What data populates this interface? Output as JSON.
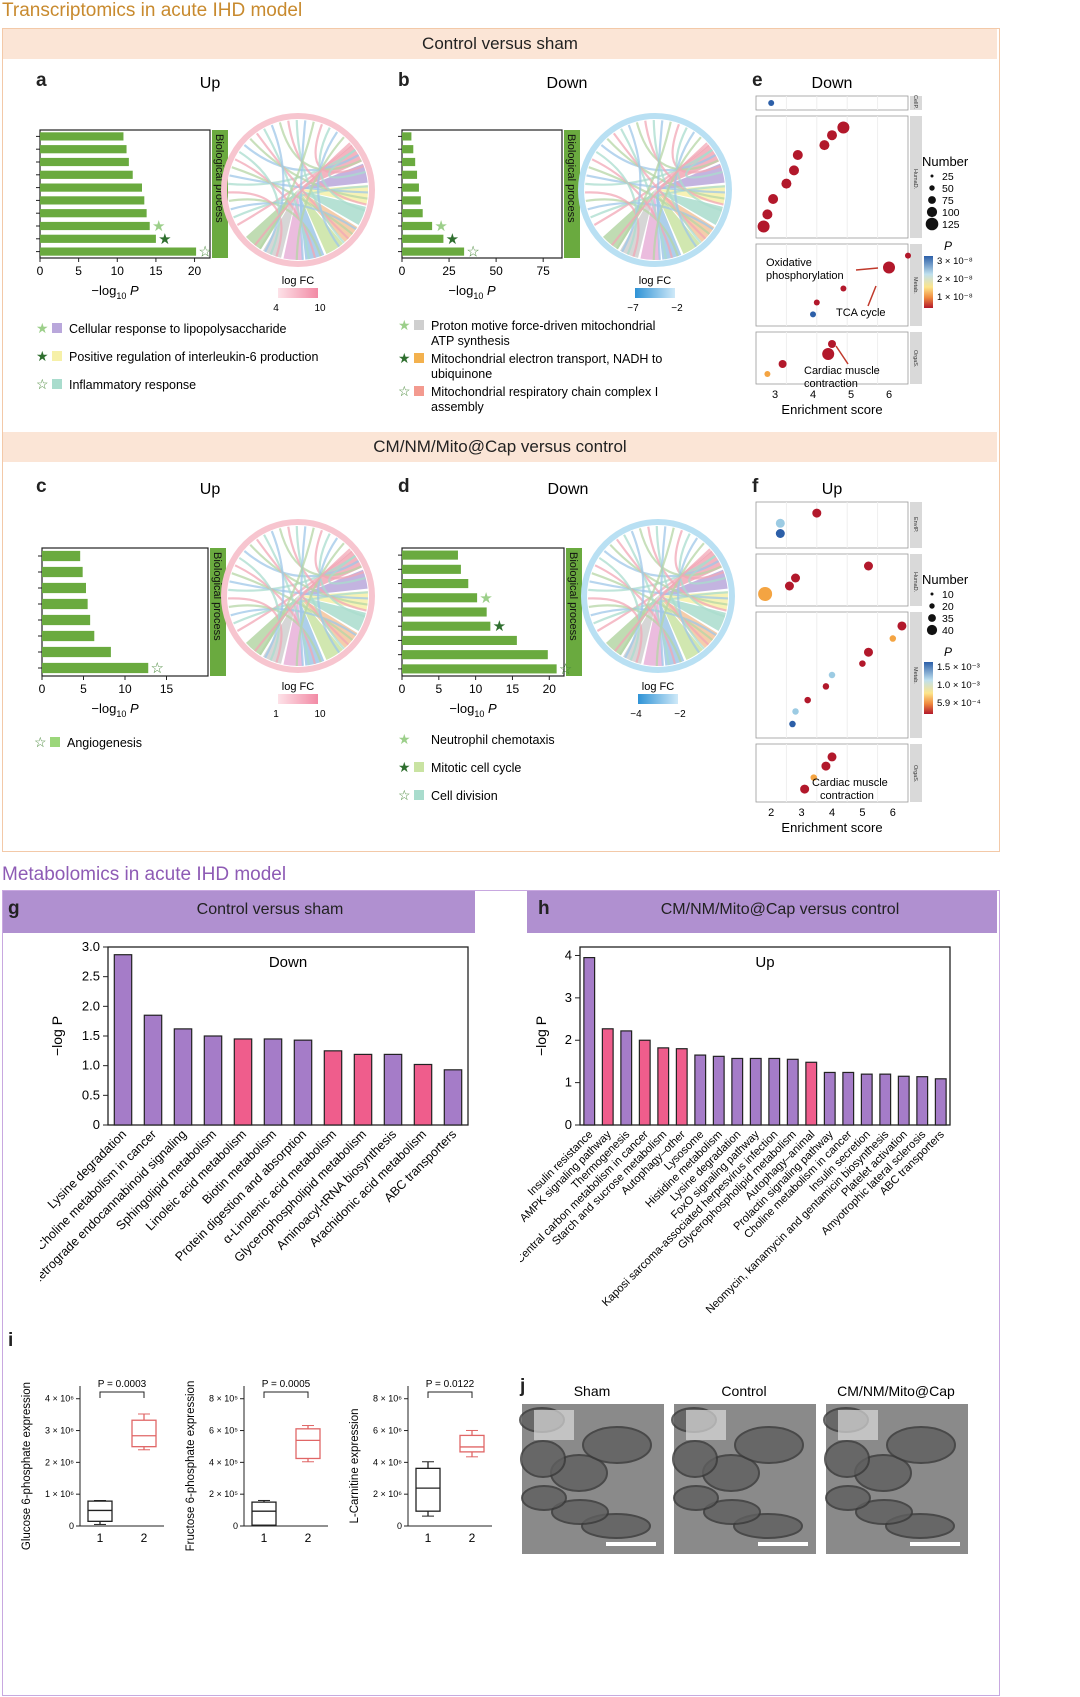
{
  "colors": {
    "green": "#6aaa3f",
    "purple": "#a57cc8",
    "pink": "#ef5d8c",
    "band": "#fbe5d6",
    "section_transcript": "#c88a2e",
    "section_metab": "#8e5bb5"
  },
  "sections": {
    "transcriptomics": "Transcriptomics in acute IHD model",
    "metabolomics": "Metabolomics in acute IHD model"
  },
  "bands": {
    "control_vs_sham": "Control versus sham",
    "cm_vs_control": "CM/NM/Mito@Cap versus control"
  },
  "panel_letters": {
    "a": "a",
    "b": "b",
    "c": "c",
    "d": "d",
    "e": "e",
    "f": "f",
    "g": "g",
    "h": "h",
    "i": "i",
    "j": "j"
  },
  "panels": {
    "a": {
      "title": "Up",
      "side_label": "Biological process",
      "logfc_label": "log FC",
      "logfc_range": [
        "4",
        "10"
      ],
      "xlabel": "−log",
      "xsub": "10",
      "xvar": "P",
      "ticks": [
        "0",
        "5",
        "10",
        "15",
        "20"
      ],
      "legend": [
        {
          "star": "★",
          "text": "Cellular response to lipopolysaccharide"
        },
        {
          "star": "★",
          "text": "Positive regulation of interleukin-6 production"
        },
        {
          "star": "☆",
          "text": "Inflammatory response"
        }
      ]
    },
    "b": {
      "title": "Down",
      "side_label": "Biological process",
      "logfc_label": "log FC",
      "logfc_range": [
        "−7",
        "−2"
      ],
      "xlabel": "−log",
      "xsub": "10",
      "xvar": "P",
      "ticks": [
        "0",
        "25",
        "50",
        "75"
      ],
      "legend": [
        {
          "star": "★",
          "text": "Proton motive force-driven mitochondrial",
          "text2": "ATP synthesis"
        },
        {
          "star": "★",
          "text": "Mitochondrial electron transport, NADH to",
          "text2": "ubiquinone"
        },
        {
          "star": "☆",
          "text": "Mitochondrial respiratory chain complex I",
          "text2": "assembly"
        }
      ]
    },
    "c": {
      "title": "Up",
      "side_label": "Biological process",
      "logfc_label": "log FC",
      "logfc_range": [
        "1",
        "10"
      ],
      "xlabel": "−log",
      "xsub": "10",
      "xvar": "P",
      "ticks": [
        "0",
        "5",
        "10",
        "15"
      ],
      "legend": [
        {
          "star": "☆",
          "text": "Angiogenesis"
        }
      ]
    },
    "d": {
      "title": "Down",
      "side_label": "Biological process",
      "logfc_label": "log FC",
      "logfc_range": [
        "−4",
        "−2"
      ],
      "xlabel": "−log",
      "xsub": "10",
      "xvar": "P",
      "ticks": [
        "0",
        "5",
        "10",
        "15",
        "20"
      ],
      "legend": [
        {
          "star": "★",
          "text": "Neutrophil chemotaxis"
        },
        {
          "star": "★",
          "text": "Mitotic cell cycle"
        },
        {
          "star": "☆",
          "text": "Cell division"
        }
      ]
    },
    "e": {
      "title": "Down",
      "xlabel": "Enrichment score",
      "facets": [
        "CellP.",
        "HumaD.",
        "Metab.",
        "OrgaS."
      ],
      "xticks": [
        "3",
        "4",
        "5",
        "6"
      ],
      "number_title": "Number",
      "number_items": [
        "25",
        "50",
        "75",
        "100",
        "125"
      ],
      "p_title": "P",
      "p_ticks": [
        "3 × 10⁻⁸",
        "2 × 10⁻⁸",
        "1 × 10⁻⁸"
      ],
      "annotations": [
        "Oxidative",
        "phosphorylation",
        "TCA cycle",
        "Cardiac muscle",
        "contraction"
      ]
    },
    "f": {
      "title": "Up",
      "xlabel": "Enrichment score",
      "facets": [
        "EnvIP.",
        "HumaD.",
        "Metab.",
        "OrgaS."
      ],
      "xticks": [
        "2",
        "3",
        "4",
        "5",
        "6"
      ],
      "number_title": "Number",
      "number_items": [
        "10",
        "20",
        "35",
        "40"
      ],
      "p_title": "P",
      "p_ticks": [
        "1.5 × 10⁻³",
        "1.0 × 10⁻³",
        "5.9 × 10⁻⁴"
      ],
      "annotations": [
        "Cardiac muscle",
        "contraction"
      ]
    },
    "g": {
      "band": "Control versus sham",
      "title": "Down",
      "ylabel": "−log P",
      "yticks": [
        "0",
        "0.5",
        "1.0",
        "1.5",
        "2.0",
        "2.5",
        "3.0"
      ]
    },
    "h": {
      "band": "CM/NM/Mito@Cap versus control",
      "title": "Up",
      "ylabel": "−log P",
      "yticks": [
        "0",
        "1",
        "2",
        "3",
        "4"
      ]
    },
    "i": [
      {
        "ylabel": "Glucose 6-phosphate expression",
        "pval": "P = 0.0003",
        "yticks": [
          "0",
          "1 × 10⁶",
          "2 × 10⁶",
          "3 × 10⁶",
          "4 × 10⁶"
        ],
        "xticks": [
          "1",
          "2"
        ]
      },
      {
        "ylabel": "Fructose 6-phosphate expression",
        "pval": "P = 0.0005",
        "yticks": [
          "0",
          "2 × 10⁵",
          "4 × 10⁵",
          "6 × 10⁵",
          "8 × 10⁵"
        ],
        "xticks": [
          "1",
          "2"
        ]
      },
      {
        "ylabel": "L-Carnitine expression",
        "pval": "P = 0.0122",
        "yticks": [
          "0",
          "2 × 10⁶",
          "4 × 10⁶",
          "6 × 10⁶",
          "8 × 10⁶"
        ],
        "xticks": [
          "1",
          "2"
        ]
      }
    ],
    "j": {
      "labels": [
        "Sham",
        "Control",
        "CM/NM/Mito@Cap"
      ]
    }
  },
  "chart_data": [
    {
      "id": "a",
      "type": "bar",
      "orientation": "horizontal",
      "xlim": [
        0,
        22
      ],
      "values": [
        10.8,
        11.2,
        11.5,
        12.0,
        13.2,
        13.5,
        13.8,
        14.2,
        15.0,
        20.2
      ],
      "stars": [
        {
          "index": 7,
          "kind": "light"
        },
        {
          "index": 8,
          "kind": "dark"
        },
        {
          "index": 9,
          "kind": "open"
        }
      ]
    },
    {
      "id": "b",
      "type": "bar",
      "orientation": "horizontal",
      "xlim": [
        0,
        85
      ],
      "values": [
        5,
        6,
        7,
        8,
        9,
        10,
        11,
        16,
        22,
        33
      ],
      "stars": [
        {
          "index": 7,
          "kind": "light"
        },
        {
          "index": 8,
          "kind": "dark"
        },
        {
          "index": 9,
          "kind": "open"
        }
      ]
    },
    {
      "id": "c",
      "type": "bar",
      "orientation": "horizontal",
      "xlim": [
        0,
        20
      ],
      "values": [
        4.6,
        4.9,
        5.3,
        5.5,
        5.8,
        6.3,
        8.3,
        12.8
      ],
      "stars": [
        {
          "index": 7,
          "kind": "open"
        }
      ]
    },
    {
      "id": "d",
      "type": "bar",
      "orientation": "horizontal",
      "xlim": [
        0,
        22
      ],
      "values": [
        7.6,
        8.0,
        9.0,
        10.2,
        11.5,
        12.0,
        15.6,
        19.8,
        21.0
      ],
      "stars": [
        {
          "index": 3,
          "kind": "light"
        },
        {
          "index": 5,
          "kind": "dark"
        },
        {
          "index": 8,
          "kind": "open"
        }
      ]
    },
    {
      "id": "e",
      "type": "scatter",
      "xlim": [
        2.5,
        6.5
      ],
      "points": [
        {
          "facet": 0,
          "x": 2.9,
          "y": 0.5,
          "n": 25,
          "p": 3e-08
        },
        {
          "facet": 1,
          "x": 2.7,
          "y": 0.05,
          "n": 100,
          "p": 1e-08
        },
        {
          "facet": 1,
          "x": 2.8,
          "y": 0.16,
          "n": 75,
          "p": 1e-08
        },
        {
          "facet": 1,
          "x": 2.95,
          "y": 0.3,
          "n": 75,
          "p": 1e-08
        },
        {
          "facet": 1,
          "x": 3.3,
          "y": 0.44,
          "n": 75,
          "p": 1e-08
        },
        {
          "facet": 1,
          "x": 3.5,
          "y": 0.56,
          "n": 75,
          "p": 1e-08
        },
        {
          "facet": 1,
          "x": 3.6,
          "y": 0.7,
          "n": 75,
          "p": 1e-08
        },
        {
          "facet": 1,
          "x": 4.3,
          "y": 0.79,
          "n": 75,
          "p": 1e-08
        },
        {
          "facet": 1,
          "x": 4.5,
          "y": 0.88,
          "n": 75,
          "p": 1e-08
        },
        {
          "facet": 1,
          "x": 4.8,
          "y": 0.95,
          "n": 100,
          "p": 1e-08
        },
        {
          "facet": 2,
          "x": 6.5,
          "y": 0.92,
          "n": 25,
          "p": 1e-08
        },
        {
          "facet": 2,
          "x": 6.0,
          "y": 0.75,
          "n": 100,
          "p": 1e-08
        },
        {
          "facet": 2,
          "x": 4.8,
          "y": 0.45,
          "n": 25,
          "p": 1e-08
        },
        {
          "facet": 2,
          "x": 4.1,
          "y": 0.25,
          "n": 25,
          "p": 1e-08
        },
        {
          "facet": 2,
          "x": 4.0,
          "y": 0.08,
          "n": 25,
          "p": 3e-08
        },
        {
          "facet": 3,
          "x": 4.5,
          "y": 0.85,
          "n": 50,
          "p": 1e-08
        },
        {
          "facet": 3,
          "x": 4.4,
          "y": 0.6,
          "n": 100,
          "p": 1e-08
        },
        {
          "facet": 3,
          "x": 3.2,
          "y": 0.35,
          "n": 50,
          "p": 1e-08
        },
        {
          "facet": 3,
          "x": 2.8,
          "y": 0.1,
          "n": 25,
          "p": 2e-08
        }
      ]
    },
    {
      "id": "f",
      "type": "scatter",
      "xlim": [
        1.5,
        6.5
      ],
      "points": [
        {
          "facet": 0,
          "x": 3.5,
          "y": 0.85,
          "n": 20,
          "p": 0.00059
        },
        {
          "facet": 0,
          "x": 2.3,
          "y": 0.55,
          "n": 20,
          "p": 0.0012
        },
        {
          "facet": 0,
          "x": 2.3,
          "y": 0.25,
          "n": 20,
          "p": 0.0015
        },
        {
          "facet": 1,
          "x": 5.2,
          "y": 0.85,
          "n": 20,
          "p": 0.00059
        },
        {
          "facet": 1,
          "x": 2.8,
          "y": 0.55,
          "n": 20,
          "p": 0.00059
        },
        {
          "facet": 1,
          "x": 2.6,
          "y": 0.35,
          "n": 20,
          "p": 0.00059
        },
        {
          "facet": 1,
          "x": 1.8,
          "y": 0.15,
          "n": 40,
          "p": 0.001
        },
        {
          "facet": 2,
          "x": 6.3,
          "y": 0.93,
          "n": 20,
          "p": 0.00059
        },
        {
          "facet": 2,
          "x": 6.0,
          "y": 0.82,
          "n": 10,
          "p": 0.001
        },
        {
          "facet": 2,
          "x": 5.2,
          "y": 0.7,
          "n": 20,
          "p": 0.00059
        },
        {
          "facet": 2,
          "x": 5.0,
          "y": 0.6,
          "n": 10,
          "p": 0.00059
        },
        {
          "facet": 2,
          "x": 4.0,
          "y": 0.5,
          "n": 10,
          "p": 0.0012
        },
        {
          "facet": 2,
          "x": 3.8,
          "y": 0.4,
          "n": 10,
          "p": 0.00059
        },
        {
          "facet": 2,
          "x": 3.2,
          "y": 0.28,
          "n": 10,
          "p": 0.00059
        },
        {
          "facet": 2,
          "x": 2.8,
          "y": 0.18,
          "n": 10,
          "p": 0.0013
        },
        {
          "facet": 2,
          "x": 2.7,
          "y": 0.07,
          "n": 10,
          "p": 0.0015
        },
        {
          "facet": 3,
          "x": 4.0,
          "y": 0.85,
          "n": 20,
          "p": 0.00059
        },
        {
          "facet": 3,
          "x": 3.8,
          "y": 0.65,
          "n": 20,
          "p": 0.00059
        },
        {
          "facet": 3,
          "x": 3.4,
          "y": 0.4,
          "n": 10,
          "p": 0.001
        },
        {
          "facet": 3,
          "x": 3.1,
          "y": 0.15,
          "n": 20,
          "p": 0.00059
        }
      ]
    },
    {
      "id": "g",
      "type": "bar",
      "title": "Down",
      "ylabel": "−log P",
      "ylim": [
        0,
        3
      ],
      "categories": [
        "Lysine degradation",
        "Choline metabolism in cancer",
        "Retrograde endocannabinoid signaling",
        "Sphingolipid metabolism",
        "Linoleic acid metabolism",
        "Biotin metabolism",
        "Protein digestion and absorption",
        "α-Linolenic acid metabolism",
        "Glycerophospholipid metabolism",
        "Aminoacyl-tRNA biosynthesis",
        "Arachidonic acid metabolism",
        "ABC transporters"
      ],
      "values": [
        2.87,
        1.85,
        1.62,
        1.5,
        1.45,
        1.45,
        1.43,
        1.25,
        1.19,
        1.19,
        1.02,
        0.93
      ],
      "colors": [
        "purple",
        "purple",
        "purple",
        "purple",
        "pink",
        "purple",
        "purple",
        "pink",
        "pink",
        "purple",
        "pink",
        "purple"
      ]
    },
    {
      "id": "h",
      "type": "bar",
      "title": "Up",
      "ylabel": "−log P",
      "ylim": [
        0,
        4.2
      ],
      "categories": [
        "Insulin resistance",
        "AMPK signaling pathway",
        "Thermogenesis",
        "Central carbon metabolism in cancer",
        "Starch and sucrose metabolism",
        "Autophagy–other",
        "Lysosome",
        "Histidine metabolism",
        "Lysine degradation",
        "FoxO signaling pathway",
        "Kaposi sarcoma-associated herpesvirus infection",
        "Glycerophospholipid metabolism",
        "Autophagy–animal",
        "Prolactin signaling pathway",
        "Choline metabolism in cancer",
        "Insulin secretion",
        "Neomycin, kanamycin and gentamicin biosynthesis",
        "Platelet activation",
        "Amyotrophic lateral sclerosis",
        "ABC transporters"
      ],
      "values": [
        3.95,
        2.27,
        2.22,
        2.0,
        1.82,
        1.8,
        1.65,
        1.62,
        1.57,
        1.57,
        1.57,
        1.55,
        1.48,
        1.24,
        1.24,
        1.2,
        1.2,
        1.15,
        1.14,
        1.09
      ],
      "colors": [
        "purple",
        "pink",
        "purple",
        "pink",
        "pink",
        "pink",
        "purple",
        "purple",
        "purple",
        "purple",
        "purple",
        "purple",
        "pink",
        "purple",
        "purple",
        "purple",
        "purple",
        "purple",
        "purple",
        "purple"
      ]
    },
    {
      "id": "i1",
      "type": "box",
      "ylim": [
        0,
        4.5
      ],
      "groups": [
        {
          "name": "1",
          "min": 0.05,
          "q1": 0.15,
          "median": 0.5,
          "q3": 0.8,
          "max": 0.82,
          "color": "#222222"
        },
        {
          "name": "2",
          "min": 2.45,
          "q1": 2.55,
          "median": 2.9,
          "q3": 3.4,
          "max": 3.6,
          "color": "#e06666"
        }
      ]
    },
    {
      "id": "i2",
      "type": "box",
      "ylim": [
        0,
        8.5
      ],
      "groups": [
        {
          "name": "1",
          "min": 0,
          "q1": 0.05,
          "median": 0.9,
          "q3": 1.45,
          "max": 1.55,
          "color": "#222222"
        },
        {
          "name": "2",
          "min": 3.9,
          "q1": 4.1,
          "median": 5.2,
          "q3": 5.9,
          "max": 6.1,
          "color": "#e06666"
        }
      ]
    },
    {
      "id": "i3",
      "type": "box",
      "ylim": [
        0,
        8.5
      ],
      "groups": [
        {
          "name": "1",
          "min": 0.6,
          "q1": 0.9,
          "median": 2.3,
          "q3": 3.5,
          "max": 3.9,
          "color": "#222222"
        },
        {
          "name": "2",
          "min": 4.2,
          "q1": 4.5,
          "median": 4.8,
          "q3": 5.5,
          "max": 5.8,
          "color": "#e06666"
        }
      ]
    }
  ]
}
